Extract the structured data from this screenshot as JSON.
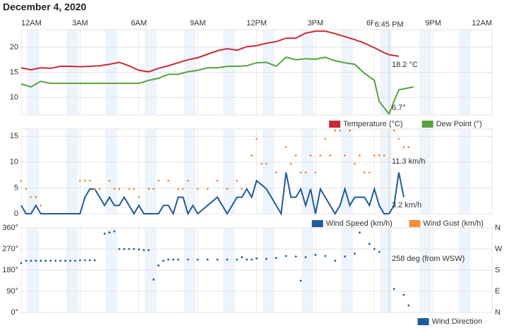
{
  "title": "December 4, 2020",
  "chart_data": [
    {
      "type": "line",
      "xlim": [
        0,
        24
      ],
      "xticks": [
        {
          "value": 0,
          "label": "12AM"
        },
        {
          "value": 3,
          "label": "3AM"
        },
        {
          "value": 6,
          "label": "6AM"
        },
        {
          "value": 9,
          "label": "9AM"
        },
        {
          "value": 12,
          "label": "12PM"
        },
        {
          "value": 15,
          "label": "3PM"
        },
        {
          "value": 18,
          "label": "6PM"
        },
        {
          "value": 21,
          "label": "9PM"
        },
        {
          "value": 24,
          "label": "12AM"
        }
      ],
      "now": {
        "value": 18.75,
        "label": "6:45 PM"
      },
      "ylim": [
        6.5,
        23.5
      ],
      "yticks": [
        10,
        15,
        20
      ],
      "grid": true,
      "series": [
        {
          "name": "Temperature (°C)",
          "color": "#cc2a36",
          "x": [
            0,
            0.5,
            1,
            1.5,
            2,
            2.5,
            3,
            3.5,
            4,
            4.5,
            5,
            5.5,
            6,
            6.5,
            7,
            7.5,
            8,
            8.5,
            9,
            9.5,
            10,
            10.5,
            11,
            11.5,
            12,
            12.5,
            13,
            13.5,
            14,
            14.5,
            15,
            15.5,
            16,
            16.5,
            17,
            17.5,
            18,
            18.5,
            18.75,
            19.25
          ],
          "values": [
            15.9,
            15.5,
            15.9,
            15.8,
            16.2,
            16.2,
            16.1,
            16.2,
            16.3,
            16.6,
            17.0,
            16.3,
            15.4,
            15.1,
            15.8,
            16.3,
            16.9,
            17.5,
            17.9,
            18.6,
            19.3,
            19.7,
            19.4,
            20.1,
            20.3,
            20.8,
            21.1,
            21.8,
            21.8,
            22.8,
            23.2,
            23.2,
            22.7,
            22.1,
            21.5,
            20.8,
            19.9,
            18.9,
            18.5,
            18.2
          ]
        },
        {
          "name": "Dew Point (°)",
          "color": "#5aa040",
          "x": [
            0,
            0.5,
            1,
            1.5,
            2,
            3,
            4,
            5,
            6,
            6.5,
            7,
            7.5,
            8,
            8.5,
            9,
            9.5,
            10,
            10.5,
            11,
            11.5,
            12,
            12.5,
            13,
            13.5,
            14,
            14.5,
            15,
            15.5,
            16,
            16.5,
            17,
            17.5,
            18,
            18.25,
            18.75,
            19,
            19.25,
            19.5,
            20
          ],
          "values": [
            12.7,
            12.1,
            13.2,
            12.8,
            12.8,
            12.8,
            12.8,
            12.8,
            12.8,
            13.4,
            13.8,
            14.6,
            14.6,
            15.1,
            15.4,
            15.9,
            15.9,
            16.2,
            16.2,
            16.3,
            16.9,
            17.0,
            16.2,
            18.0,
            17.5,
            17.7,
            17.6,
            18.0,
            17.3,
            16.9,
            16.6,
            14.8,
            13.4,
            9.2,
            6.7,
            9.2,
            11.5,
            11.7,
            12.1
          ]
        }
      ],
      "annotations": [
        "18.2 °C",
        "6.7°"
      ]
    },
    {
      "type": "line",
      "xlim": [
        0,
        24
      ],
      "ylim": [
        0,
        16.4
      ],
      "yticks": [
        0,
        5,
        10,
        15
      ],
      "grid": true,
      "series": [
        {
          "name": "Wind Speed (km/h)",
          "color": "#1f5b9c",
          "kind": "line",
          "x": [
            0,
            0.25,
            0.5,
            0.75,
            1,
            2,
            3,
            3.25,
            3.5,
            3.75,
            4,
            4.25,
            4.5,
            4.75,
            5,
            5.25,
            5.5,
            5.75,
            6,
            6.25,
            7,
            7.25,
            7.5,
            7.75,
            8,
            8.25,
            8.5,
            8.75,
            9,
            9.5,
            10,
            10.5,
            11,
            11.25,
            11.5,
            11.75,
            12,
            12.5,
            13,
            13.25,
            13.5,
            13.75,
            14,
            14.25,
            14.5,
            14.75,
            15,
            15.25,
            15.5,
            16,
            16.25,
            16.5,
            16.75,
            17,
            17.5,
            17.75,
            18,
            18.25,
            18.5,
            18.75,
            19,
            19.25,
            19.5
          ],
          "values": [
            1.6,
            0,
            0,
            1.6,
            0,
            0,
            0,
            3.2,
            4.8,
            4.8,
            3.2,
            1.6,
            3.2,
            1.6,
            1.6,
            3.2,
            1.6,
            0,
            1.6,
            0,
            0,
            1.6,
            1.6,
            0,
            3.2,
            3.2,
            0,
            1.6,
            0,
            1.6,
            3.2,
            0,
            3.2,
            3.2,
            4.8,
            3.2,
            6.4,
            4.8,
            1.6,
            0,
            8,
            3.2,
            3.2,
            4.8,
            1.6,
            4.8,
            0,
            4.8,
            3.2,
            0,
            1.6,
            4.8,
            1.6,
            3.2,
            3.2,
            1.6,
            4.8,
            1.6,
            0,
            0,
            1.6,
            8,
            3.2
          ]
        },
        {
          "name": "Wind Gust (km/h)",
          "color": "#f28e3c",
          "kind": "scatter",
          "x": [
            0,
            0.25,
            0.5,
            0.75,
            1,
            3,
            3.25,
            3.5,
            3.75,
            4,
            4.5,
            4.75,
            5,
            5.5,
            5.75,
            6,
            6.5,
            6.75,
            7,
            7.5,
            8,
            8.25,
            8.5,
            9,
            9.5,
            10,
            10.5,
            11,
            11.25,
            11.75,
            12,
            12.25,
            12.5,
            13,
            13.5,
            13.75,
            14,
            14.25,
            14.5,
            14.75,
            15,
            15.25,
            15.5,
            15.75,
            16,
            16.25,
            16.5,
            16.75,
            17,
            17.25,
            17.5,
            17.75,
            18,
            18.25,
            18.5,
            19,
            19.25,
            19.5,
            19.75
          ],
          "values": [
            6.4,
            4.8,
            3.2,
            3.2,
            1.6,
            6.4,
            6.4,
            6.4,
            4.8,
            4.8,
            6.4,
            4.8,
            4.8,
            4.8,
            4.8,
            3.2,
            4.8,
            4.8,
            6.4,
            6.4,
            4.8,
            4.8,
            6.4,
            4.8,
            4.8,
            6.4,
            4.8,
            6.4,
            4.8,
            11.3,
            14.5,
            9.7,
            9.7,
            8,
            12.9,
            9.7,
            11.3,
            8,
            8,
            11.3,
            8,
            11.3,
            14.5,
            11.3,
            16.1,
            16.1,
            11.3,
            16.1,
            9.7,
            11.3,
            8,
            8,
            11.3,
            11.3,
            11.3,
            16.1,
            14.5,
            12.9,
            12.9
          ]
        }
      ],
      "annotations": [
        "11.3 km/h",
        "3.2 km/h"
      ]
    },
    {
      "type": "scatter",
      "xlim": [
        0,
        24
      ],
      "ylim": [
        0,
        360
      ],
      "yticks": [
        {
          "value": 0,
          "label": "0°"
        },
        {
          "value": 90,
          "label": "90°"
        },
        {
          "value": 180,
          "label": "180°"
        },
        {
          "value": 270,
          "label": "270°"
        },
        {
          "value": 360,
          "label": "360°"
        }
      ],
      "y2lim": [
        0,
        360
      ],
      "y2ticks": [
        {
          "value": 0,
          "label": "N"
        },
        {
          "value": 90,
          "label": "E"
        },
        {
          "value": 180,
          "label": "S"
        },
        {
          "value": 270,
          "label": "W"
        },
        {
          "value": 360,
          "label": "N"
        }
      ],
      "grid": true,
      "series": [
        {
          "name": "Wind Direction",
          "color": "#1f5b9c",
          "x": [
            0,
            0.25,
            0.5,
            0.75,
            1,
            1.25,
            1.5,
            1.75,
            2,
            2.25,
            2.5,
            2.75,
            3,
            3.25,
            3.5,
            3.75,
            4.25,
            4.5,
            4.75,
            5,
            5.25,
            5.5,
            5.75,
            6,
            6.25,
            6.5,
            6.75,
            7,
            7.25,
            7.5,
            7.75,
            8,
            8.5,
            9,
            9.5,
            10,
            10.5,
            11,
            11.25,
            11.5,
            11.75,
            12,
            12.5,
            13,
            13.5,
            14,
            14.25,
            14.5,
            15,
            15.5,
            16,
            16.5,
            17,
            17.25,
            17.75,
            18,
            18.25,
            19,
            19.5,
            19.75
          ],
          "values": [
            210,
            220,
            220,
            220,
            220,
            220,
            220,
            220,
            220,
            220,
            220,
            220,
            222,
            222,
            222,
            222,
            335,
            340,
            345,
            270,
            270,
            270,
            270,
            268,
            265,
            265,
            140,
            200,
            220,
            225,
            225,
            225,
            225,
            225,
            225,
            225,
            225,
            225,
            235,
            225,
            225,
            230,
            228,
            232,
            240,
            238,
            135,
            235,
            245,
            240,
            220,
            238,
            250,
            340,
            292,
            270,
            258,
            100,
            75,
            30
          ]
        }
      ],
      "annotations": [
        "258 deg (from WSW)"
      ]
    }
  ]
}
